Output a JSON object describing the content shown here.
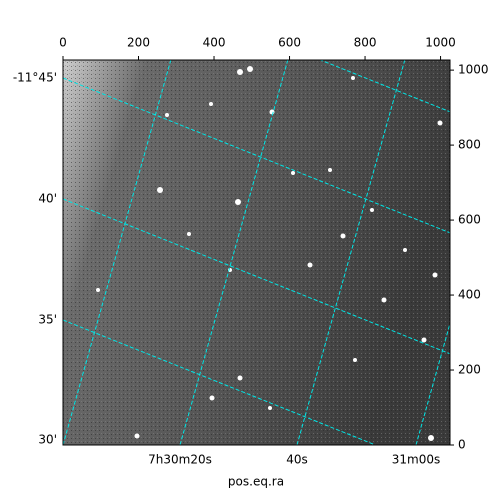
{
  "chart_data": {
    "type": "image",
    "x_label": "pos.eq.ra",
    "xlim": [
      0,
      1025
    ],
    "xticks": [
      0,
      200,
      400,
      600,
      800,
      1000
    ],
    "ylim": [
      0,
      1027
    ],
    "yticks": [
      0,
      200,
      400,
      600,
      800,
      1000
    ],
    "dec_tick_labels": [
      "-11°45'",
      "40'",
      "35'",
      "30'"
    ],
    "ra_tick_labels": [
      "7h30m20s",
      "40s",
      "31m00s"
    ],
    "grid_color": "#00e5e5"
  }
}
